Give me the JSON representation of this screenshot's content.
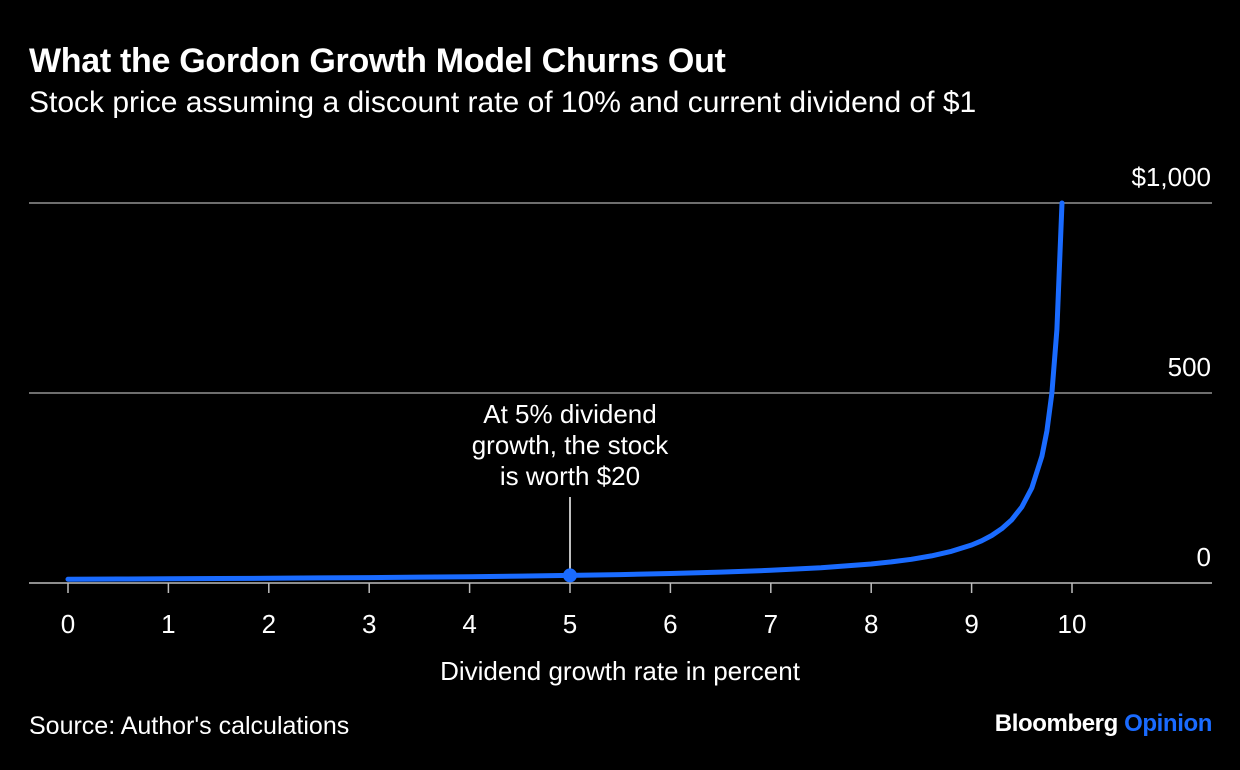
{
  "header": {
    "title": "What the Gordon Growth Model Churns Out",
    "subtitle": "Stock price assuming a discount rate of 10% and current dividend of $1"
  },
  "footer": {
    "source": "Source: Author's calculations",
    "brand_main": "Bloomberg",
    "brand_accent": "Opinion"
  },
  "colors": {
    "background": "#000000",
    "line": "#1a6bff",
    "grid": "#6e6e6e",
    "text": "#ffffff"
  },
  "chart_data": {
    "type": "line",
    "title": "What the Gordon Growth Model Churns Out",
    "subtitle": "Stock price assuming a discount rate of 10% and current dividend of $1",
    "xlabel": "Dividend growth rate in percent",
    "ylabel": "",
    "xlim": [
      0,
      10
    ],
    "ylim": [
      0,
      1000
    ],
    "x_ticks": [
      0,
      1,
      2,
      3,
      4,
      5,
      6,
      7,
      8,
      9,
      10
    ],
    "x_tick_labels": [
      "0",
      "1",
      "2",
      "3",
      "4",
      "5",
      "6",
      "7",
      "8",
      "9",
      "10"
    ],
    "y_ticks": [
      0,
      500,
      1000
    ],
    "y_tick_labels": [
      "0",
      "500",
      "$1,000"
    ],
    "grid": true,
    "series": [
      {
        "x": [
          0,
          0.5,
          1,
          1.5,
          2,
          2.5,
          3,
          3.5,
          4,
          4.5,
          5,
          5.5,
          6,
          6.5,
          7,
          7.5,
          8,
          8.2,
          8.4,
          8.6,
          8.8,
          9,
          9.1,
          9.2,
          9.3,
          9.4,
          9.5,
          9.6,
          9.7,
          9.75,
          9.8,
          9.85,
          9.9
        ],
        "y": [
          10,
          10.5,
          11.1,
          11.8,
          12.5,
          13.3,
          14.3,
          15.4,
          16.7,
          18.2,
          20,
          22.2,
          25,
          28.6,
          33.3,
          40,
          50,
          55.6,
          62.5,
          71.4,
          83.3,
          100,
          111.1,
          125,
          142.9,
          166.7,
          200,
          250,
          333.3,
          400,
          500,
          666.7,
          1000
        ]
      }
    ],
    "annotations": [
      {
        "text_lines": [
          "At 5% dividend",
          "growth, the stock",
          "is worth $20"
        ],
        "x": 5,
        "y": 20
      }
    ]
  }
}
